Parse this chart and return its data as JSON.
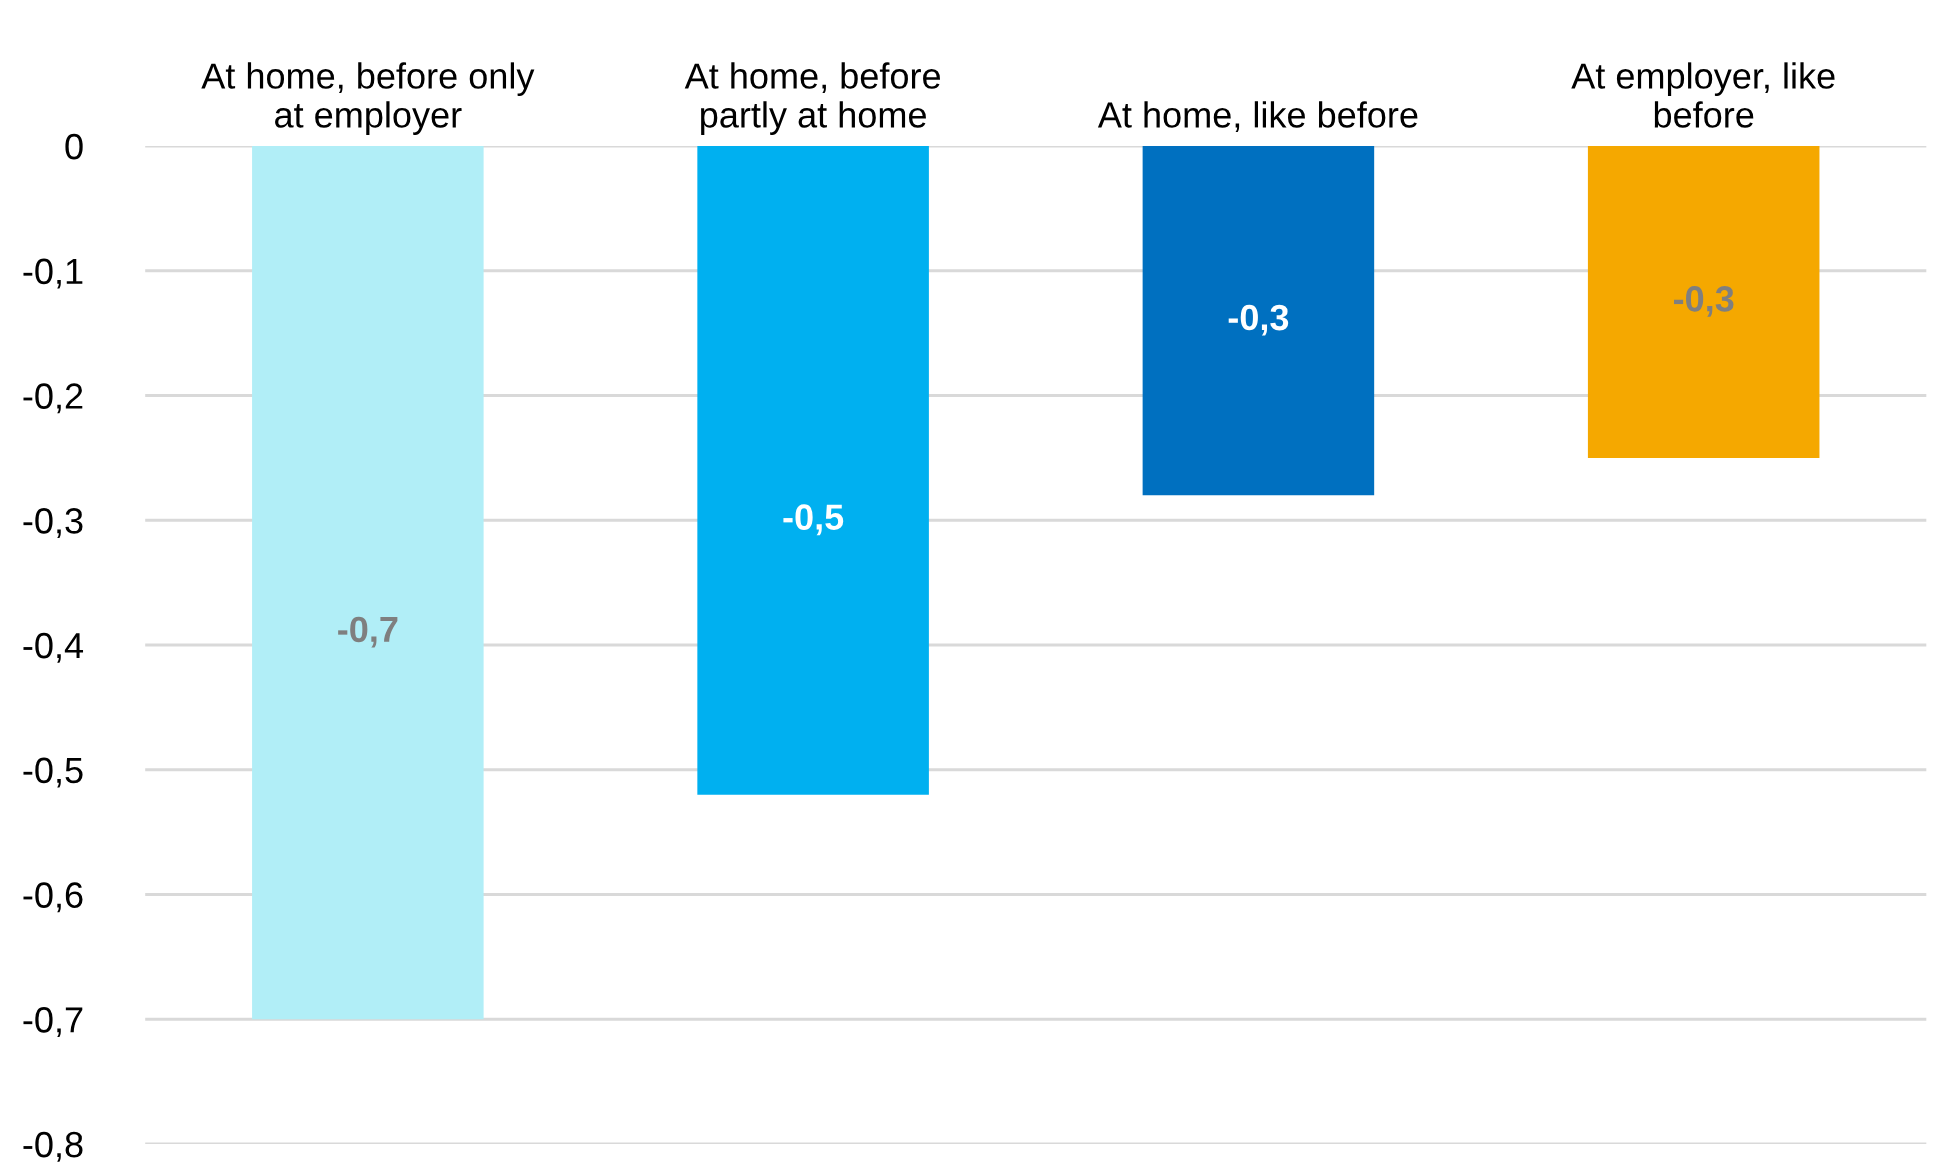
{
  "chart_data": {
    "type": "bar",
    "categories": [
      "At home, before only\nat employer",
      "At home, before\npartly at home",
      "At home, like before",
      "At employer, like\nbefore"
    ],
    "values": [
      -0.7,
      -0.52,
      -0.28,
      -0.25
    ],
    "colors": [
      "#b1eef7",
      "#00b0f0",
      "#0070c0",
      "#f5a800"
    ],
    "value_labels": [
      "-0,7",
      "-0,5",
      "-0,3",
      "-0,3"
    ],
    "ylim": [
      -0.8,
      0
    ],
    "yticks": [
      {
        "value": -0.8,
        "label": "-0,8"
      },
      {
        "value": -0.7,
        "label": "-0,7"
      },
      {
        "value": -0.6,
        "label": "-0,6"
      },
      {
        "value": -0.5,
        "label": "-0,5"
      },
      {
        "value": -0.4,
        "label": "-0,4"
      },
      {
        "value": -0.3,
        "label": "-0,3"
      },
      {
        "value": -0.2,
        "label": "-0,2"
      },
      {
        "value": -0.1,
        "label": "-0,1"
      },
      {
        "value": 0,
        "label": "0"
      }
    ],
    "grid": "y"
  }
}
